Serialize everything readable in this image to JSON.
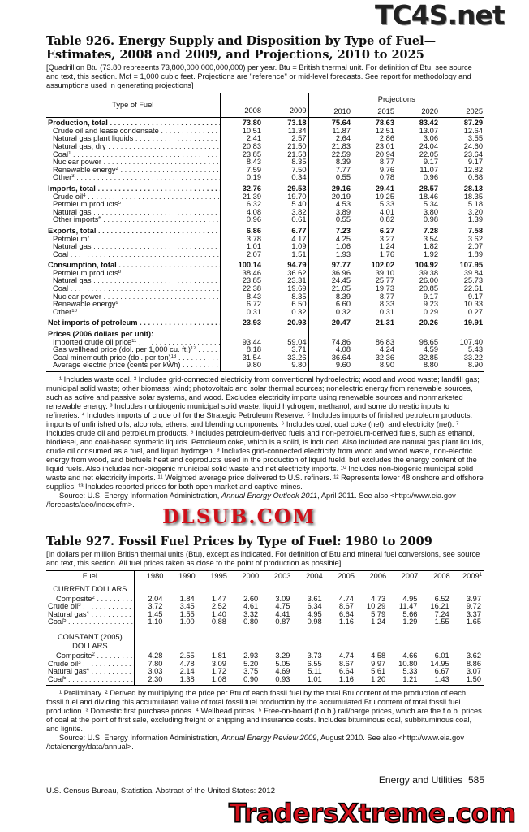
{
  "watermarks": {
    "top": "TC4S.net",
    "middle": "DLSUB.COM",
    "bottom": "TradersXtreme.com"
  },
  "t926": {
    "title": "Table 926. Energy Supply and Disposition by Type of Fuel—Estimates, 2008 and 2009, and Projections, 2010 to 2025",
    "intro": "[Quadrillion Btu (73.80 represents 73,800,000,000,000,000) per year. Btu = British thermal unit. For definition of Btu, see source and text, this section. Mcf = 1,000 cubic feet. Projections are \"reference\" or mid-level forecasts. See report for methodology and assumptions used in generating projections]",
    "col_label": "Type of Fuel",
    "projections_label": "Projections",
    "years": [
      "2008",
      "2009",
      "2010",
      "2015",
      "2020",
      "2025"
    ],
    "rows": [
      {
        "label": "Production, total",
        "bold": true,
        "v": [
          "73.80",
          "73.18",
          "75.64",
          "78.63",
          "83.42",
          "87.29"
        ]
      },
      {
        "label": "Crude oil and lease condensate",
        "v": [
          "10.51",
          "11.34",
          "11.87",
          "12.51",
          "13.07",
          "12.64"
        ]
      },
      {
        "label": "Natural gas plant liquids",
        "v": [
          "2.41",
          "2.57",
          "2.64",
          "2.86",
          "3.06",
          "3.55"
        ]
      },
      {
        "label": "Natural gas, dry",
        "v": [
          "20.83",
          "21.50",
          "21.83",
          "23.01",
          "24.04",
          "24.60"
        ]
      },
      {
        "label": "Coal",
        "sup": "1",
        "v": [
          "23.85",
          "21.58",
          "22.59",
          "20.94",
          "22.05",
          "23.64"
        ]
      },
      {
        "label": "Nuclear power",
        "v": [
          "8.43",
          "8.35",
          "8.39",
          "8.77",
          "9.17",
          "9.17"
        ]
      },
      {
        "label": "Renewable energy",
        "sup": "2",
        "v": [
          "7.59",
          "7.50",
          "7.77",
          "9.76",
          "11.07",
          "12.82"
        ]
      },
      {
        "label": "Other",
        "sup": "3",
        "v": [
          "0.19",
          "0.34",
          "0.55",
          "0.78",
          "0.96",
          "0.88"
        ]
      },
      {
        "label": "Imports, total",
        "bold": true,
        "gap": true,
        "v": [
          "32.76",
          "29.53",
          "29.16",
          "29.41",
          "28.57",
          "28.13"
        ]
      },
      {
        "label": "Crude oil",
        "sup": "4",
        "v": [
          "21.39",
          "19.70",
          "20.19",
          "19.25",
          "18.46",
          "18.35"
        ]
      },
      {
        "label": "Petroleum products",
        "sup": "5",
        "v": [
          "6.32",
          "5.40",
          "4.53",
          "5.33",
          "5.34",
          "5.18"
        ]
      },
      {
        "label": "Natural gas",
        "v": [
          "4.08",
          "3.82",
          "3.89",
          "4.01",
          "3.80",
          "3.20"
        ]
      },
      {
        "label": "Other imports",
        "sup": "6",
        "v": [
          "0.96",
          "0.61",
          "0.55",
          "0.82",
          "0.98",
          "1.39"
        ]
      },
      {
        "label": "Exports, total",
        "bold": true,
        "gap": true,
        "v": [
          "6.86",
          "6.77",
          "7.23",
          "6.27",
          "7.28",
          "7.58"
        ]
      },
      {
        "label": "Petroleum",
        "sup": "7",
        "v": [
          "3.78",
          "4.17",
          "4.25",
          "3.27",
          "3.54",
          "3.62"
        ]
      },
      {
        "label": "Natural gas",
        "v": [
          "1.01",
          "1.09",
          "1.06",
          "1.24",
          "1.82",
          "2.07"
        ]
      },
      {
        "label": "Coal",
        "v": [
          "2.07",
          "1.51",
          "1.93",
          "1.76",
          "1.92",
          "1.89"
        ]
      },
      {
        "label": "Consumption, total",
        "bold": true,
        "gap": true,
        "v": [
          "100.14",
          "94.79",
          "97.77",
          "102.02",
          "104.92",
          "107.95"
        ]
      },
      {
        "label": "Petroleum products",
        "sup": "8",
        "v": [
          "38.46",
          "36.62",
          "36.96",
          "39.10",
          "39.38",
          "39.84"
        ]
      },
      {
        "label": "Natural gas",
        "v": [
          "23.85",
          "23.31",
          "24.45",
          "25.77",
          "26.00",
          "25.73"
        ]
      },
      {
        "label": "Coal",
        "v": [
          "22.38",
          "19.69",
          "21.05",
          "19.73",
          "20.85",
          "22.61"
        ]
      },
      {
        "label": "Nuclear power",
        "v": [
          "8.43",
          "8.35",
          "8.39",
          "8.77",
          "9.17",
          "9.17"
        ]
      },
      {
        "label": "Renewable energy",
        "sup": "9",
        "v": [
          "6.72",
          "6.50",
          "6.60",
          "8.33",
          "9.23",
          "10.33"
        ]
      },
      {
        "label": "Other",
        "sup": "10",
        "v": [
          "0.31",
          "0.32",
          "0.32",
          "0.31",
          "0.29",
          "0.27"
        ]
      },
      {
        "label": "Net imports of petroleum",
        "bold": true,
        "gap": true,
        "v": [
          "23.93",
          "20.93",
          "20.47",
          "21.31",
          "20.26",
          "19.91"
        ]
      },
      {
        "label": "Prices (2006 dollars per unit):",
        "bold": true,
        "gap": true,
        "nodots": true,
        "v": [
          "",
          "",
          "",
          "",
          "",
          ""
        ]
      },
      {
        "label": "Imported crude oil price",
        "sup": "11",
        "v": [
          "93.44",
          "59.04",
          "74.86",
          "86.83",
          "98.65",
          "107.40"
        ]
      },
      {
        "label": "Gas wellhead price (dol. per 1,000 cu. ft.)",
        "sup": "12",
        "v": [
          "8.18",
          "3.71",
          "4.08",
          "4.24",
          "4.59",
          "5.43"
        ]
      },
      {
        "label": "Coal minemouth price (dol. per ton)",
        "sup": "13",
        "v": [
          "31.54",
          "33.26",
          "36.64",
          "32.36",
          "32.85",
          "33.22"
        ]
      },
      {
        "label": "Average electric price (cents per kWh)",
        "v": [
          "9.80",
          "9.80",
          "9.60",
          "8.90",
          "8.80",
          "8.90"
        ]
      }
    ],
    "footnotes": "¹ Includes waste coal. ² Includes grid-connected electricity from conventional hydroelectric; wood and wood waste; landfill gas; municipal solid waste; other biomass; wind; photovoltaic and solar thermal sources; nonelectric energy from renewable sources, such as active and passive solar systems, and wood. Excludes electricity imports using renewable sources and nonmarketed renewable energy. ³ Includes nonbiogenic municipal solid waste, liquid hydrogen, methanol, and some domestic inputs to refineries. ⁴ Includes imports of crude oil for the Strategic Petroleum Reserve. ⁵ Includes imports of finished petroleum products, imports of unfinished oils, alcohols, ethers, and blending components. ⁶ Includes coal, coal coke (net), and electricity (net). ⁷ Includes crude oil and petroleum products. ⁸ Includes petroleum-derived fuels and non-petroleum-derived fuels, such as ethanol, biodiesel, and coal-based synthetic liquids. Petroleum coke, which is a solid, is included. Also included are natural gas plant liquids, crude oil consumed as a fuel, and liquid hydrogen. ⁹ Includes grid-connected electricity from wood and wood waste, non-electric energy from wood, and biofuels heat and coproducts used in the production of liquid fueld, but excludes the energy content of the liquid fuels. Also includes non-biogenic municipal solid waste and net electricity imports. ¹⁰ Includes non-biogenic municipal solid waste and net electricity imports. ¹¹ Weighted average price delivered to U.S. refiners. ¹² Represents lower 48 onshore and offshore supplies. ¹³ Includes reported prices for both open market and captive mines.",
    "source_prefix": "Source: U.S. Energy Information Administration, ",
    "source_title": "Annual Energy Outlook 2011",
    "source_suffix": ", April 2011. See also <http://www.eia.gov /forecasts/aeo/index.cfm>."
  },
  "t927": {
    "title": "Table 927. Fossil Fuel Prices by Type of Fuel: 1980 to 2009",
    "intro": "[In dollars per million British thermal units (Btu), except as indicated. For definition of Btu and mineral fuel conversions, see source and text, this section. All fuel prices taken as close to the point of production as possible]",
    "col_label": "Fuel",
    "years": [
      "1980",
      "1990",
      "1995",
      "2000",
      "2003",
      "2004",
      "2005",
      "2006",
      "2007",
      "2008",
      "2009"
    ],
    "last_year_sup": "1",
    "sections": [
      {
        "heading": "CURRENT DOLLARS",
        "rows": [
          {
            "label": "Composite",
            "sup": "2",
            "v": [
              "2.04",
              "1.84",
              "1.47",
              "2.60",
              "3.09",
              "3.61",
              "4.74",
              "4.73",
              "4.95",
              "6.52",
              "3.97"
            ]
          },
          {
            "label": "Crude oil",
            "sup": "3",
            "v": [
              "3.72",
              "3.45",
              "2.52",
              "4.61",
              "4.75",
              "6.34",
              "8.67",
              "10.29",
              "11.47",
              "16.21",
              "9.72"
            ]
          },
          {
            "label": "Natural gas",
            "sup": "4",
            "v": [
              "1.45",
              "1.55",
              "1.40",
              "3.32",
              "4.41",
              "4.95",
              "6.64",
              "5.79",
              "5.66",
              "7.24",
              "3.37"
            ]
          },
          {
            "label": "Coal",
            "sup": "5",
            "v": [
              "1.10",
              "1.00",
              "0.88",
              "0.80",
              "0.87",
              "0.98",
              "1.16",
              "1.24",
              "1.29",
              "1.55",
              "1.65"
            ]
          }
        ]
      },
      {
        "heading": "CONSTANT (2005) DOLLARS",
        "rows": [
          {
            "label": "Composite",
            "sup": "2",
            "v": [
              "4.28",
              "2.55",
              "1.81",
              "2.93",
              "3.29",
              "3.73",
              "4.74",
              "4.58",
              "4.66",
              "6.01",
              "3.62"
            ]
          },
          {
            "label": "Crude oil",
            "sup": "3",
            "v": [
              "7.80",
              "4.78",
              "3.09",
              "5.20",
              "5.05",
              "6.55",
              "8.67",
              "9.97",
              "10.80",
              "14.95",
              "8.86"
            ]
          },
          {
            "label": "Natural gas",
            "sup": "4",
            "v": [
              "3.03",
              "2.14",
              "1.72",
              "3.75",
              "4.69",
              "5.11",
              "6.64",
              "5.61",
              "5.33",
              "6.67",
              "3.07"
            ]
          },
          {
            "label": "Coal",
            "sup": "5",
            "v": [
              "2.30",
              "1.38",
              "1.08",
              "0.90",
              "0.93",
              "1.01",
              "1.16",
              "1.20",
              "1.21",
              "1.43",
              "1.50"
            ]
          }
        ]
      }
    ],
    "footnotes": "¹ Preliminary. ² Derived by multiplying the price per Btu of each fossil fuel by the total Btu content of the production of each fossil fuel and dividing this accumulated value of total fossil fuel production by the accumulated Btu content of total fossil fuel production. ³ Domestic first purchase prices. ⁴ Wellhead prices. ⁵ Free-on-board (f.o.b.) rail/barge prices, which are the f.o.b. prices of coal at the point of first sale, excluding freight or shipping and insurance costs. Includes bituminous coal, subbituminous coal, and lignite.",
    "source_prefix": "Source: U.S. Energy Information Administration, ",
    "source_title": "Annual Energy Review 2009",
    "source_suffix": ", August 2010. See also <http://www.eia.gov /totalenergy/data/annual>."
  },
  "footer": {
    "section": "Energy and Utilities",
    "page": "585",
    "publisher": "U.S. Census Bureau, Statistical Abstract of the United States: 2012"
  }
}
